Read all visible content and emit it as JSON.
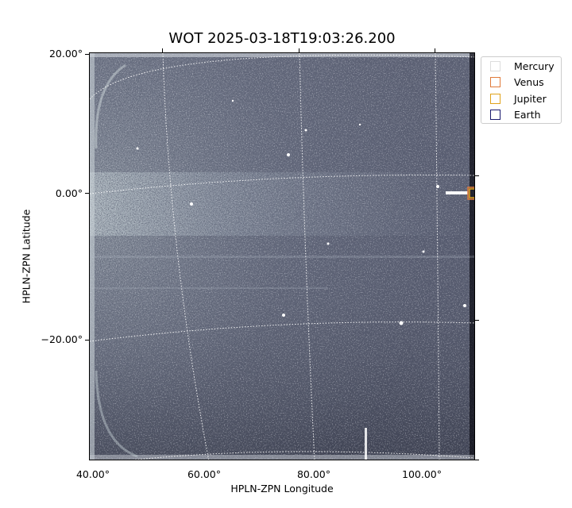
{
  "title": "WOT 2025-03-18T19:03:26.200",
  "x_axis": {
    "label": "HPLN-ZPN Longitude",
    "ticks": [
      "40.00°",
      "60.00°",
      "80.00°",
      "100.00°"
    ]
  },
  "y_axis": {
    "label": "HPLN-ZPN Latitude",
    "ticks": [
      "20.00°",
      "0.00°",
      "−20.00°"
    ]
  },
  "legend": {
    "placement": "upper-right outside plot",
    "items": [
      {
        "label": "Mercury",
        "color": "#dddddd"
      },
      {
        "label": "Venus",
        "color": "#e07a3a"
      },
      {
        "label": "Jupiter",
        "color": "#e0a21a"
      },
      {
        "label": "Earth",
        "color": "#1a1a6e"
      }
    ]
  },
  "colors": {
    "image_base": "#5a5e72",
    "gridlines": "#ffffff"
  },
  "grid": true
}
